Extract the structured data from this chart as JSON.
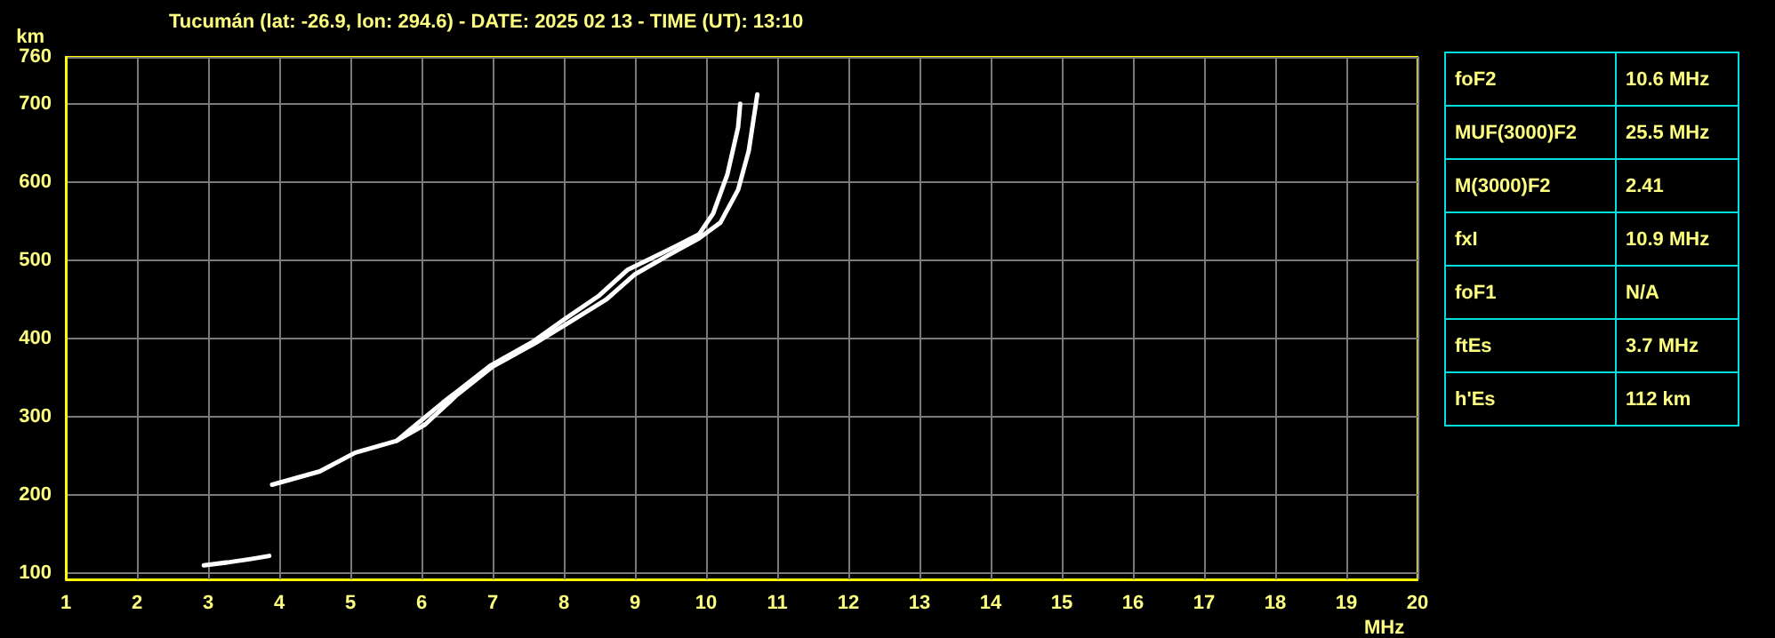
{
  "chart_data": [
    {
      "type": "line",
      "title": "Tucumán (lat: -26.9, lon: 294.6) - DATE: 2025 02 13 - TIME (UT): 13:10",
      "xlabel": "MHz",
      "ylabel": "km",
      "xlim": [
        1,
        20
      ],
      "xticks": [
        1,
        2,
        3,
        4,
        5,
        6,
        7,
        8,
        9,
        10,
        11,
        12,
        13,
        14,
        15,
        16,
        17,
        18,
        19,
        20
      ],
      "ylim": [
        92,
        760
      ],
      "yticks": [
        100,
        200,
        300,
        400,
        500,
        600,
        700,
        760
      ],
      "grid": true,
      "marker": "none",
      "line_style": "solid",
      "series": [
        {
          "color": "#ffffff",
          "x": [
            2.94,
            3.3,
            3.6,
            3.86
          ],
          "values": [
            110,
            114,
            118,
            122
          ]
        },
        {
          "color": "#ffffff",
          "x": [
            3.9,
            4.57,
            5.07,
            5.65,
            5.9,
            6.3,
            6.98,
            7.57,
            8.0,
            8.5,
            8.9,
            9.4,
            9.9,
            10.1,
            10.3,
            10.45,
            10.48
          ],
          "values": [
            213,
            230,
            254,
            269,
            288,
            318,
            366,
            396,
            424,
            455,
            488,
            510,
            533,
            560,
            610,
            670,
            700
          ]
        },
        {
          "color": "#ffffff",
          "x": [
            5.65,
            6.05,
            6.5,
            7.0,
            7.6,
            8.1,
            8.6,
            9.0,
            9.5,
            9.9,
            10.2,
            10.45,
            10.6,
            10.72
          ],
          "values": [
            269,
            290,
            328,
            364,
            394,
            422,
            450,
            482,
            508,
            528,
            548,
            590,
            640,
            712
          ]
        }
      ]
    },
    {
      "type": "other",
      "annotations": [
        "foF2",
        "10.6 MHz",
        "MUF(3000)F2",
        "25.5 MHz",
        "M(3000)F2",
        "2.41",
        "fxI",
        "10.9 MHz",
        "foF1",
        "N/A",
        "ftEs",
        "3.7 MHz",
        "h'Es",
        "112 km"
      ]
    }
  ]
}
